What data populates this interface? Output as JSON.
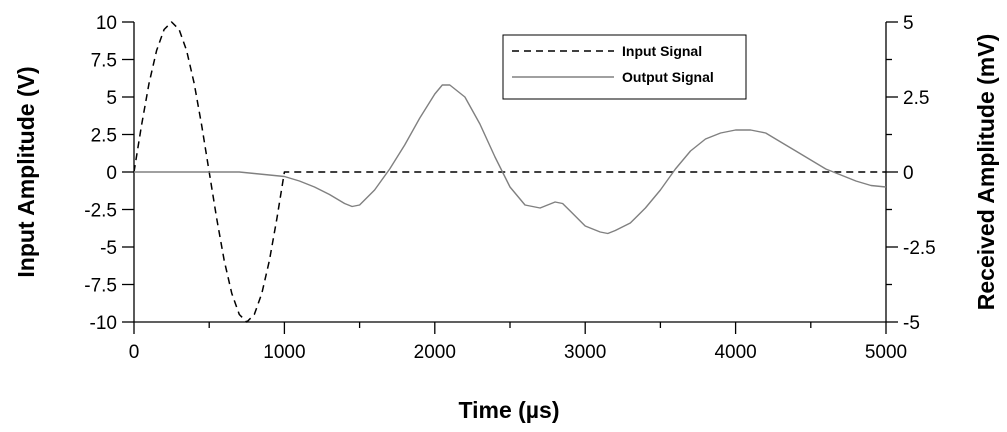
{
  "chart_data": {
    "type": "line",
    "xlabel": "Time (µs)",
    "ylabel_left": "Input Amplitude (V)",
    "ylabel_right": "Received Amplitude (mV)",
    "xlim": [
      0,
      5000
    ],
    "ylim_left": [
      -10,
      10
    ],
    "ylim_right": [
      -5,
      5
    ],
    "grid": false,
    "legend_position": "top-center",
    "x_ticks": [
      0,
      1000,
      2000,
      3000,
      4000,
      5000
    ],
    "x_tick_labels": [
      "0",
      "1000",
      "2000",
      "3000",
      "4000",
      "5000"
    ],
    "y_left_ticks": [
      10,
      7.5,
      5,
      2.5,
      0,
      -2.5,
      -5,
      -7.5,
      -10
    ],
    "y_left_tick_labels": [
      "10",
      "7.5",
      "5",
      "2.5",
      "0",
      "-2.5",
      "-5",
      "-7.5",
      "-10"
    ],
    "y_right_ticks": [
      5,
      2.5,
      0,
      -2.5,
      -5
    ],
    "y_right_tick_labels": [
      "5",
      "2.5",
      "0",
      "-2.5",
      "-5"
    ],
    "series": [
      {
        "name": "Input Signal",
        "axis": "left",
        "style": "dashed",
        "color": "#000000",
        "x": [
          0,
          50,
          100,
          150,
          200,
          250,
          300,
          350,
          400,
          450,
          500,
          550,
          600,
          650,
          700,
          750,
          800,
          850,
          900,
          950,
          1000,
          1100,
          1300,
          1500,
          2000,
          2500,
          3000,
          3500,
          4000,
          4500,
          5000
        ],
        "values": [
          0,
          3.1,
          5.9,
          8.1,
          9.5,
          10.0,
          9.5,
          8.1,
          5.9,
          3.1,
          0,
          -3.1,
          -5.9,
          -8.1,
          -9.5,
          -10.0,
          -9.5,
          -8.1,
          -5.9,
          -3.1,
          0,
          0,
          0,
          0,
          0,
          0,
          0,
          0,
          0,
          0,
          0
        ]
      },
      {
        "name": "Output Signal",
        "axis": "right",
        "style": "solid",
        "color": "#808080",
        "x": [
          0,
          100,
          200,
          300,
          400,
          500,
          600,
          700,
          800,
          900,
          1000,
          1100,
          1200,
          1300,
          1400,
          1450,
          1500,
          1600,
          1700,
          1800,
          1900,
          2000,
          2050,
          2100,
          2200,
          2300,
          2400,
          2500,
          2600,
          2700,
          2800,
          2850,
          2900,
          3000,
          3100,
          3150,
          3200,
          3300,
          3400,
          3500,
          3600,
          3700,
          3800,
          3900,
          4000,
          4100,
          4200,
          4300,
          4400,
          4500,
          4600,
          4700,
          4800,
          4900,
          5000
        ],
        "values": [
          0,
          0,
          0,
          0,
          0,
          0,
          0,
          0,
          -0.05,
          -0.1,
          -0.15,
          -0.3,
          -0.5,
          -0.75,
          -1.05,
          -1.15,
          -1.1,
          -0.6,
          0.1,
          0.9,
          1.8,
          2.6,
          2.9,
          2.9,
          2.5,
          1.6,
          0.5,
          -0.5,
          -1.1,
          -1.2,
          -1.0,
          -1.05,
          -1.3,
          -1.8,
          -2.0,
          -2.05,
          -1.95,
          -1.7,
          -1.2,
          -0.6,
          0.1,
          0.7,
          1.1,
          1.3,
          1.4,
          1.4,
          1.3,
          1.0,
          0.7,
          0.4,
          0.1,
          -0.1,
          -0.3,
          -0.45,
          -0.5
        ]
      }
    ]
  }
}
